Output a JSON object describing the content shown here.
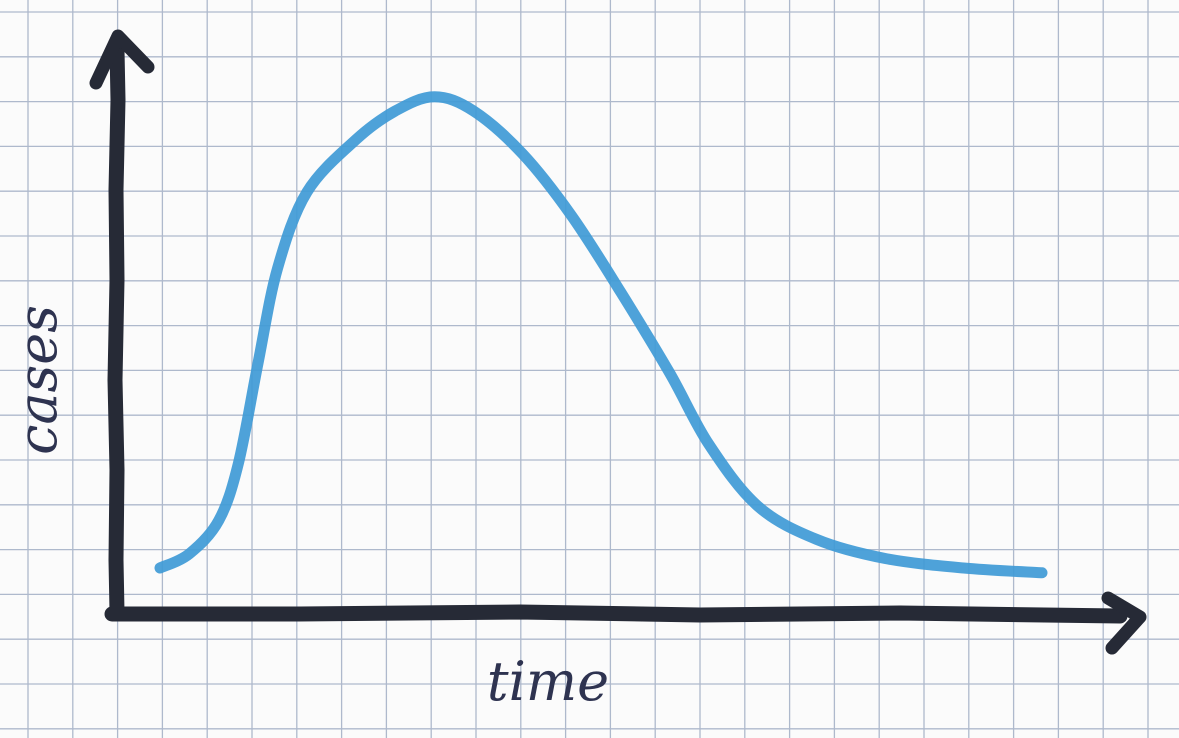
{
  "chart_data": {
    "type": "line",
    "title": "",
    "xlabel": "time",
    "ylabel": "cases",
    "x_ticks": [],
    "y_ticks": [],
    "grid": true,
    "legend": "none",
    "colors": {
      "paper": "#fbfbfb",
      "grid": "#aeb9cc",
      "axis": "#262a36",
      "curve": "#3f9ad6",
      "text": "#2e3350"
    },
    "series": [
      {
        "points": [
          [
            0.0,
            0.0
          ],
          [
            0.03,
            0.03
          ],
          [
            0.06,
            0.1
          ],
          [
            0.08,
            0.22
          ],
          [
            0.1,
            0.43
          ],
          [
            0.12,
            0.63
          ],
          [
            0.15,
            0.79
          ],
          [
            0.2,
            0.9
          ],
          [
            0.24,
            0.96
          ],
          [
            0.28,
            0.99
          ],
          [
            0.32,
            0.96
          ],
          [
            0.37,
            0.87
          ],
          [
            0.42,
            0.74
          ],
          [
            0.47,
            0.58
          ],
          [
            0.52,
            0.41
          ],
          [
            0.56,
            0.26
          ],
          [
            0.61,
            0.13
          ],
          [
            0.67,
            0.06
          ],
          [
            0.74,
            0.02
          ],
          [
            0.82,
            0.0
          ],
          [
            0.9,
            -0.01
          ]
        ]
      }
    ]
  }
}
